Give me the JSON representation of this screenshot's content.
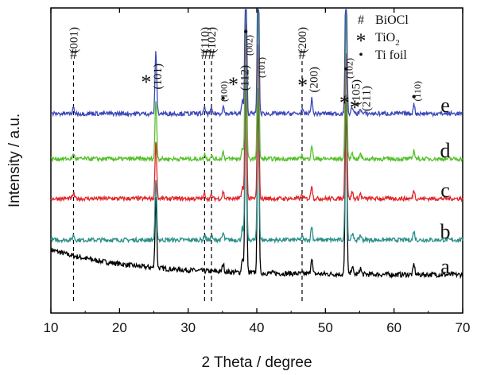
{
  "chart_data": {
    "type": "line",
    "xlabel": "2 Theta / degree",
    "ylabel": "Intensity / a.u.",
    "xlim": [
      10,
      70
    ],
    "xticks": [
      10,
      20,
      30,
      40,
      50,
      60,
      70
    ],
    "grid": false,
    "legend_position": "top-right",
    "legend": [
      {
        "symbol": "#",
        "label": "BiOCl",
        "subscript": ""
      },
      {
        "symbol": "*",
        "label": "TiO",
        "subscript": "2"
      },
      {
        "symbol": "•",
        "label": "Ti foil",
        "subscript": ""
      }
    ],
    "series": [
      {
        "label": "a",
        "color": "#000000"
      },
      {
        "label": "b",
        "color": "#2a8f8a"
      },
      {
        "label": "c",
        "color": "#e0262a"
      },
      {
        "label": "d",
        "color": "#55c02c"
      },
      {
        "label": "e",
        "color": "#3b48b8"
      }
    ],
    "reference_lines_x": [
      13.3,
      32.4,
      33.4,
      46.6
    ],
    "peak_annotations": [
      {
        "text": "(001)",
        "x": 13.3,
        "marker": "#"
      },
      {
        "text": "(101)",
        "x": 25.3,
        "marker": "*"
      },
      {
        "text": "(110)",
        "x": 32.4,
        "marker": "#"
      },
      {
        "text": "(102)",
        "x": 33.4,
        "marker": "#"
      },
      {
        "text": "(100)",
        "x": 35.1,
        "marker": "•"
      },
      {
        "text": "(112)",
        "x": 37.9,
        "marker": "*"
      },
      {
        "text": "(002)",
        "x": 38.4,
        "marker": "•"
      },
      {
        "text": "(101)",
        "x": 40.2,
        "marker": "•"
      },
      {
        "text": "(200)",
        "x": 46.6,
        "marker": "#"
      },
      {
        "text": "(200)",
        "x": 48.0,
        "marker": "*"
      },
      {
        "text": "(102)",
        "x": 53.0,
        "marker": "•"
      },
      {
        "text": "(105)",
        "x": 53.9,
        "marker": "*"
      },
      {
        "text": "(211)",
        "x": 55.1,
        "marker": "*"
      },
      {
        "text": "(110)",
        "x": 62.9,
        "marker": "•"
      }
    ]
  }
}
